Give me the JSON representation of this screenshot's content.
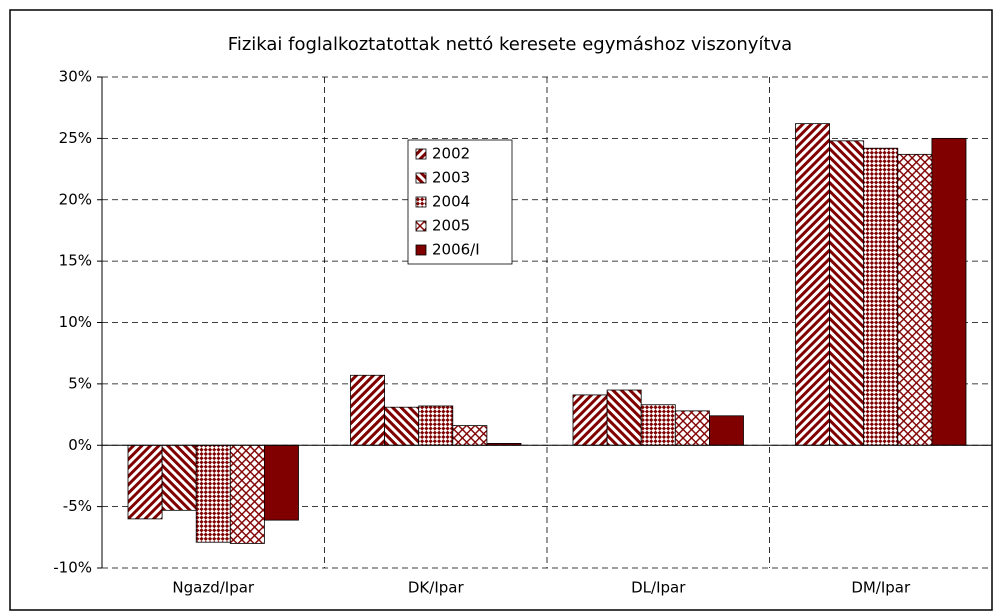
{
  "chart_data": {
    "type": "bar",
    "title": "Fizikai foglalkoztatottak nettó keresete egymáshoz viszonyítva",
    "categories": [
      "Ngazd/Ipar",
      "DK/Ipar",
      "DL/Ipar",
      "DM/Ipar"
    ],
    "series": [
      {
        "name": "2002",
        "color": "#800000",
        "pattern": "diagonal-up",
        "values": [
          -6.0,
          5.7,
          4.1,
          26.2
        ]
      },
      {
        "name": "2003",
        "color": "#800000",
        "pattern": "diagonal-down",
        "values": [
          -5.3,
          3.1,
          4.5,
          24.8
        ]
      },
      {
        "name": "2004",
        "color": "#800000",
        "pattern": "checker",
        "values": [
          -7.9,
          3.2,
          3.3,
          24.2
        ]
      },
      {
        "name": "2005",
        "color": "#800000",
        "pattern": "crosshatch",
        "values": [
          -8.0,
          1.6,
          2.8,
          23.7
        ]
      },
      {
        "name": "2006/I",
        "color": "#800000",
        "pattern": "solid",
        "values": [
          -6.1,
          0.15,
          2.4,
          25.0
        ]
      }
    ],
    "ylim": [
      -10,
      30
    ],
    "yticks": [
      {
        "value": -10,
        "label": "-10%"
      },
      {
        "value": -5,
        "label": "-5%"
      },
      {
        "value": 0,
        "label": "0%"
      },
      {
        "value": 5,
        "label": "5%"
      },
      {
        "value": 10,
        "label": "10%"
      },
      {
        "value": 15,
        "label": "15%"
      },
      {
        "value": 20,
        "label": "20%"
      },
      {
        "value": 25,
        "label": "25%"
      },
      {
        "value": 30,
        "label": "30%"
      }
    ],
    "grid": true
  }
}
